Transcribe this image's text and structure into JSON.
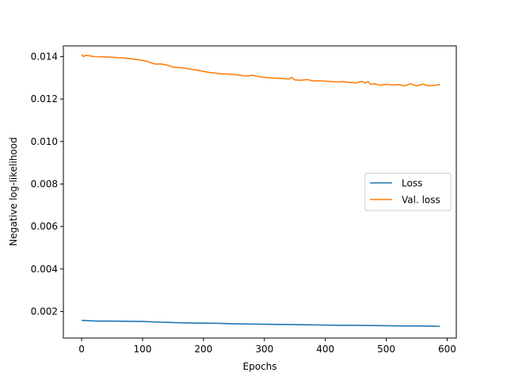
{
  "chart_data": {
    "type": "line",
    "title": "",
    "xlabel": "Epochs",
    "ylabel": "Negative log-likelihood",
    "xlim": [
      -30,
      615
    ],
    "ylim": [
      0.00075,
      0.0145
    ],
    "xticks": [
      0,
      100,
      200,
      300,
      400,
      500,
      600
    ],
    "xtick_labels": [
      "0",
      "100",
      "200",
      "300",
      "400",
      "500",
      "600"
    ],
    "yticks": [
      0.002,
      0.004,
      0.006,
      0.008,
      0.01,
      0.012,
      0.014
    ],
    "ytick_labels": [
      "0.002",
      "0.004",
      "0.006",
      "0.008",
      "0.010",
      "0.012",
      "0.014"
    ],
    "grid": false,
    "legend_position": "center-right",
    "series": [
      {
        "name": "Loss",
        "color": "#1f77b4",
        "x": [
          0,
          25,
          50,
          75,
          100,
          125,
          150,
          175,
          200,
          225,
          250,
          275,
          300,
          325,
          350,
          375,
          400,
          425,
          450,
          475,
          500,
          525,
          550,
          575,
          588
        ],
        "y": [
          0.00158,
          0.00155,
          0.00155,
          0.00154,
          0.00153,
          0.0015,
          0.00148,
          0.00146,
          0.00145,
          0.00144,
          0.00142,
          0.00141,
          0.0014,
          0.00139,
          0.00138,
          0.00137,
          0.00136,
          0.00135,
          0.00135,
          0.00134,
          0.00133,
          0.00132,
          0.00132,
          0.00131,
          0.0013
        ]
      },
      {
        "name": "Val. loss",
        "color": "#ff7f0e",
        "x": [
          0,
          3,
          6,
          10,
          20,
          40,
          60,
          80,
          100,
          110,
          120,
          130,
          140,
          150,
          160,
          170,
          180,
          190,
          200,
          210,
          220,
          230,
          240,
          250,
          260,
          270,
          280,
          290,
          300,
          310,
          320,
          330,
          340,
          345,
          350,
          360,
          370,
          380,
          390,
          400,
          410,
          420,
          430,
          440,
          450,
          460,
          465,
          470,
          475,
          480,
          490,
          500,
          510,
          520,
          530,
          540,
          550,
          560,
          570,
          580,
          588
        ],
        "y": [
          0.0141,
          0.014,
          0.01405,
          0.01405,
          0.014,
          0.01398,
          0.01395,
          0.0139,
          0.01382,
          0.01375,
          0.01365,
          0.01365,
          0.0136,
          0.0135,
          0.01348,
          0.01345,
          0.0134,
          0.01336,
          0.0133,
          0.01325,
          0.01322,
          0.01318,
          0.01318,
          0.01315,
          0.01312,
          0.01308,
          0.01312,
          0.01306,
          0.01302,
          0.013,
          0.01298,
          0.01296,
          0.01294,
          0.01302,
          0.0129,
          0.01288,
          0.01292,
          0.01285,
          0.01286,
          0.01284,
          0.01282,
          0.0128,
          0.01282,
          0.01278,
          0.01276,
          0.01283,
          0.01276,
          0.01282,
          0.01268,
          0.01272,
          0.01265,
          0.0127,
          0.01266,
          0.01268,
          0.01262,
          0.01272,
          0.01262,
          0.0127,
          0.01262,
          0.01265,
          0.01268
        ]
      }
    ]
  }
}
